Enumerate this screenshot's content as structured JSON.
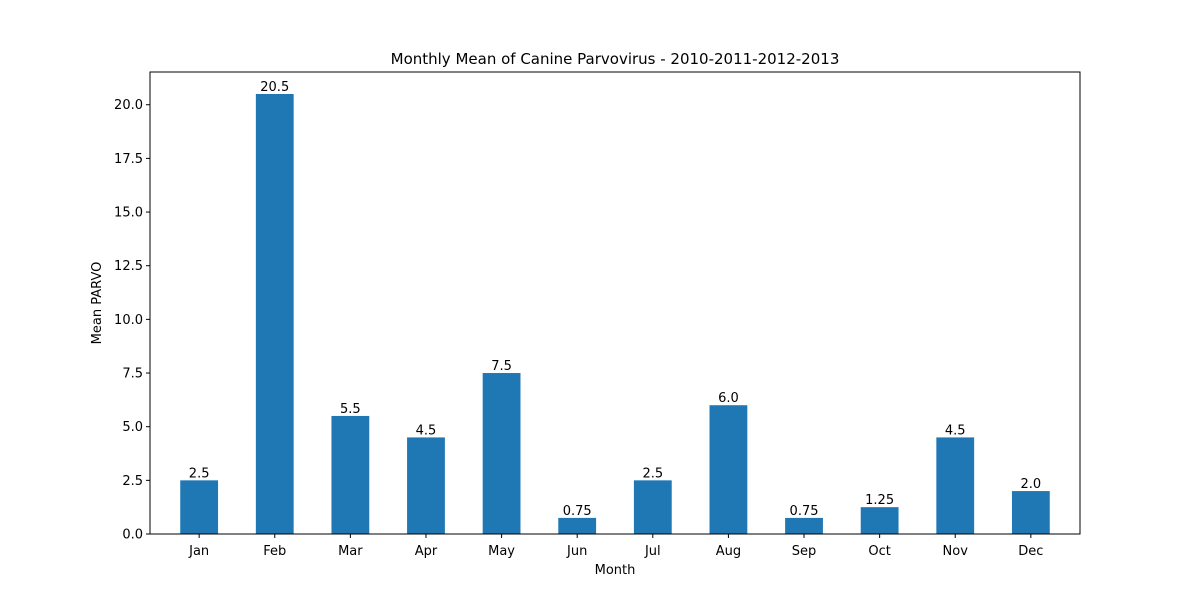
{
  "chart_data": {
    "type": "bar",
    "title": "Monthly Mean of Canine Parvovirus - 2010-2011-2012-2013",
    "xlabel": "Month",
    "ylabel": "Mean PARVO",
    "categories": [
      "Jan",
      "Feb",
      "Mar",
      "Apr",
      "May",
      "Jun",
      "Jul",
      "Aug",
      "Sep",
      "Oct",
      "Nov",
      "Dec"
    ],
    "values": [
      2.5,
      20.5,
      5.5,
      4.5,
      7.5,
      0.75,
      2.5,
      6.0,
      0.75,
      1.25,
      4.5,
      2.0
    ],
    "value_labels": [
      "2.5",
      "20.5",
      "5.5",
      "4.5",
      "7.5",
      "0.75",
      "2.5",
      "6.0",
      "0.75",
      "1.25",
      "4.5",
      "2.0"
    ],
    "yticks": [
      "0.0",
      "2.5",
      "5.0",
      "7.5",
      "10.0",
      "12.5",
      "15.0",
      "17.5",
      "20.0"
    ],
    "ylim": [
      0,
      21.525
    ],
    "grid": false,
    "legend": "none",
    "bar_color": "#1f77b4"
  }
}
